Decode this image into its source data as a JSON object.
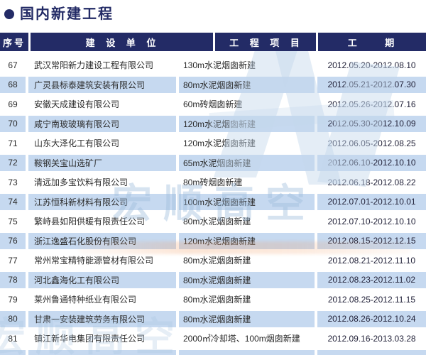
{
  "title": {
    "bullet": "●",
    "text": "国内新建工程"
  },
  "table": {
    "headers": [
      {
        "label": "序号"
      },
      {
        "label": "建 设 单 位"
      },
      {
        "label": "工 程 项 目"
      },
      {
        "label": "工 期"
      }
    ],
    "rows": [
      {
        "no": "67",
        "company": "武汉常阳新力建设工程有限公司",
        "project": "130m水泥烟囱新建",
        "period": "2012.05.20-2012.08.10"
      },
      {
        "no": "68",
        "company": "广灵县标泰建筑安装有限公司",
        "project": "80m水泥烟囱新建",
        "period": "2012.05.21-2012.07.30"
      },
      {
        "no": "69",
        "company": "安徽天成建设有限公司",
        "project": "60m砖烟囱新建",
        "period": "2012.05.26-2012.07.16"
      },
      {
        "no": "70",
        "company": "咸宁南玻玻璃有限公司",
        "project": "120m水泥烟囱新建",
        "period": "2012.05.30-2012.10.09"
      },
      {
        "no": "71",
        "company": "山东大泽化工有限公司",
        "project": "120m水泥烟囱新建",
        "period": "2012.06.05-2012.08.25"
      },
      {
        "no": "72",
        "company": "鞍钢关宝山选矿厂",
        "project": "65m水泥烟囱新建",
        "period": "2012.06.10-2012.10.10"
      },
      {
        "no": "73",
        "company": "清远加多宝饮料有限公司",
        "project": "80m砖烟囱新建",
        "period": "2012.06.18-2012.08.22"
      },
      {
        "no": "74",
        "company": "江苏恒科新材料有限公司",
        "project": "100m水泥烟囱新建",
        "period": "2012.07.01-2012.10.01"
      },
      {
        "no": "75",
        "company": "繁峙县如阳供暖有限责任公司",
        "project": "80m水泥烟囱新建",
        "period": "2012.07.10-2012.10.10"
      },
      {
        "no": "76",
        "company": "浙江逸盛石化股份有限公司",
        "project": "120m水泥烟囱新建",
        "period": "2012.08.15-2012.12.15"
      },
      {
        "no": "77",
        "company": "常州常宝精特能源管材有限公司",
        "project": "80m水泥烟囱新建",
        "period": "2012.08.21-2012.11.10"
      },
      {
        "no": "78",
        "company": "河北鑫海化工有限公司",
        "project": "80m水泥烟囱新建",
        "period": "2012.08.23-2012.11.02"
      },
      {
        "no": "79",
        "company": "莱州鲁通特种纸业有限公司",
        "project": "80m水泥烟囱新建",
        "period": "2012.08.25-2012.11.15"
      },
      {
        "no": "80",
        "company": "甘肃一安装建筑劳务有限公司",
        "project": "80m水泥烟囱新建",
        "period": "2012.08.26-2012.10.24"
      },
      {
        "no": "81",
        "company": "镇江新华电集团有限责任公司",
        "project": "2000㎡冷却塔、100m烟囱新建",
        "period": "2012.09.16-2013.03.28"
      }
    ]
  },
  "watermark": {
    "logo_text": "宏顺高空"
  },
  "colors": {
    "navy": "#232b66",
    "row_blue": "#c6d9f0",
    "body_text": "#2b2b2b",
    "watermark_blue": "#a9c4e0",
    "watermark_orange": "#f2a169"
  }
}
